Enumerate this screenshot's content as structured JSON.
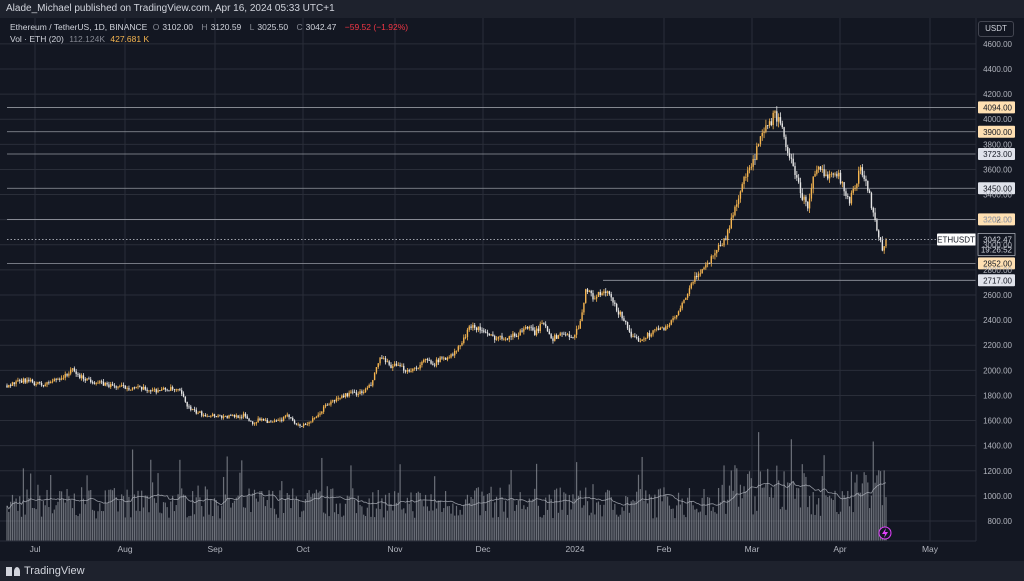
{
  "header": {
    "publisher_line": "Alade_Michael published on TradingView.com, Apr 16, 2024 05:33 UTC+1"
  },
  "legend": {
    "symbol": "Ethereum / TetherUS, 1D, BINANCE",
    "open_label": "O",
    "open": "3102.00",
    "high_label": "H",
    "high": "3120.59",
    "low_label": "L",
    "low": "3025.50",
    "close_label": "C",
    "close": "3042.47",
    "change": "−59.52 (−1.92%)",
    "volume_label": "Vol · ETH (20)",
    "volume_ma": "112.124K",
    "volume": "427.681 K"
  },
  "axis": {
    "unit": "USDT"
  },
  "footer": {
    "brand": "TradingView"
  },
  "colors": {
    "background": "#131722",
    "up": "#f5b550",
    "down": "#e6e6e6",
    "grid": "#2a2e39",
    "volume": "#8a8d96"
  },
  "chart_data": {
    "type": "candlestick",
    "x_labels": [
      "Jul",
      "Aug",
      "Sep",
      "Oct",
      "Nov",
      "Dec",
      "2024",
      "Feb",
      "Mar",
      "Apr",
      "May"
    ],
    "price_ticks": [
      "800.00",
      "1000.00",
      "1200.00",
      "1400.00",
      "1600.00",
      "1800.00",
      "2000.00",
      "2200.00",
      "2400.00",
      "2600.00",
      "2800.00",
      "3000.00",
      "3200.00",
      "3400.00",
      "3600.00",
      "3800.00",
      "4000.00",
      "4200.00",
      "4400.00",
      "4600.00"
    ],
    "y_range": [
      600,
      4800
    ],
    "horizontal_levels": [
      {
        "label": "4094.00",
        "value": 4094,
        "style": "highlight"
      },
      {
        "label": "3900.00",
        "value": 3900,
        "style": "highlight"
      },
      {
        "label": "3723.00",
        "value": 3723,
        "style": "dark"
      },
      {
        "label": "3450.00",
        "value": 3450,
        "style": "dark"
      },
      {
        "label": "3202.00",
        "value": 3202,
        "style": "highlight"
      },
      {
        "label": "2852.00",
        "value": 2852,
        "style": "highlight"
      },
      {
        "label": "2717.00",
        "value": 2717,
        "style": "dark"
      }
    ],
    "current_price": {
      "symbol": "ETHUSDT",
      "value": "3042.47",
      "countdown": "19:26:52",
      "price": 3042.47
    },
    "price_path": [
      [
        0,
        1880
      ],
      [
        10,
        1920
      ],
      [
        20,
        1880
      ],
      [
        28,
        1935
      ],
      [
        33,
        1960
      ],
      [
        35,
        2010
      ],
      [
        40,
        1950
      ],
      [
        50,
        1900
      ],
      [
        60,
        1870
      ],
      [
        70,
        1860
      ],
      [
        80,
        1840
      ],
      [
        90,
        1850
      ],
      [
        95,
        1830
      ],
      [
        100,
        1700
      ],
      [
        103,
        1670
      ],
      [
        108,
        1650
      ],
      [
        115,
        1640
      ],
      [
        120,
        1630
      ],
      [
        130,
        1640
      ],
      [
        135,
        1580
      ],
      [
        140,
        1620
      ],
      [
        145,
        1580
      ],
      [
        150,
        1600
      ],
      [
        155,
        1640
      ],
      [
        160,
        1560
      ],
      [
        162,
        1560
      ],
      [
        165,
        1580
      ],
      [
        170,
        1620
      ],
      [
        175,
        1720
      ],
      [
        180,
        1760
      ],
      [
        185,
        1800
      ],
      [
        190,
        1820
      ],
      [
        195,
        1820
      ],
      [
        200,
        1880
      ],
      [
        205,
        2100
      ],
      [
        210,
        2040
      ],
      [
        215,
        2030
      ],
      [
        220,
        2000
      ],
      [
        225,
        2020
      ],
      [
        230,
        2080
      ],
      [
        235,
        2060
      ],
      [
        240,
        2100
      ],
      [
        245,
        2120
      ],
      [
        250,
        2220
      ],
      [
        255,
        2360
      ],
      [
        260,
        2330
      ],
      [
        265,
        2270
      ],
      [
        270,
        2260
      ],
      [
        275,
        2270
      ],
      [
        280,
        2280
      ],
      [
        285,
        2350
      ],
      [
        290,
        2300
      ],
      [
        295,
        2380
      ],
      [
        300,
        2250
      ],
      [
        305,
        2300
      ],
      [
        310,
        2250
      ],
      [
        315,
        2380
      ],
      [
        318,
        2650
      ],
      [
        322,
        2580
      ],
      [
        325,
        2600
      ],
      [
        330,
        2620
      ],
      [
        335,
        2480
      ],
      [
        340,
        2390
      ],
      [
        343,
        2250
      ],
      [
        348,
        2250
      ],
      [
        352,
        2280
      ],
      [
        356,
        2320
      ],
      [
        360,
        2330
      ],
      [
        365,
        2380
      ],
      [
        370,
        2480
      ],
      [
        375,
        2650
      ],
      [
        380,
        2780
      ],
      [
        385,
        2850
      ],
      [
        390,
        2970
      ],
      [
        395,
        3050
      ],
      [
        400,
        3300
      ],
      [
        405,
        3520
      ],
      [
        410,
        3650
      ],
      [
        413,
        3800
      ],
      [
        418,
        3950
      ],
      [
        420,
        3980
      ],
      [
        422,
        4050
      ],
      [
        425,
        3950
      ],
      [
        430,
        3700
      ],
      [
        433,
        3580
      ],
      [
        436,
        3420
      ],
      [
        440,
        3300
      ],
      [
        443,
        3520
      ],
      [
        446,
        3600
      ],
      [
        450,
        3550
      ],
      [
        455,
        3600
      ],
      [
        460,
        3450
      ],
      [
        463,
        3340
      ],
      [
        466,
        3480
      ],
      [
        469,
        3600
      ],
      [
        472,
        3500
      ],
      [
        476,
        3260
      ],
      [
        479,
        3080
      ],
      [
        481,
        2950
      ],
      [
        483,
        3050
      ]
    ],
    "volume_range": [
      600,
      1800
    ],
    "volume_ticks": [
      "800.00",
      "1000.00",
      "1200.00",
      "1400.00",
      "1600.00"
    ],
    "volume_note": "Daily ETH volume bars (thousands) with 20-period moving average, Jul 2023 – Apr 2024; latest 427.681 K, MA 112.124K"
  }
}
